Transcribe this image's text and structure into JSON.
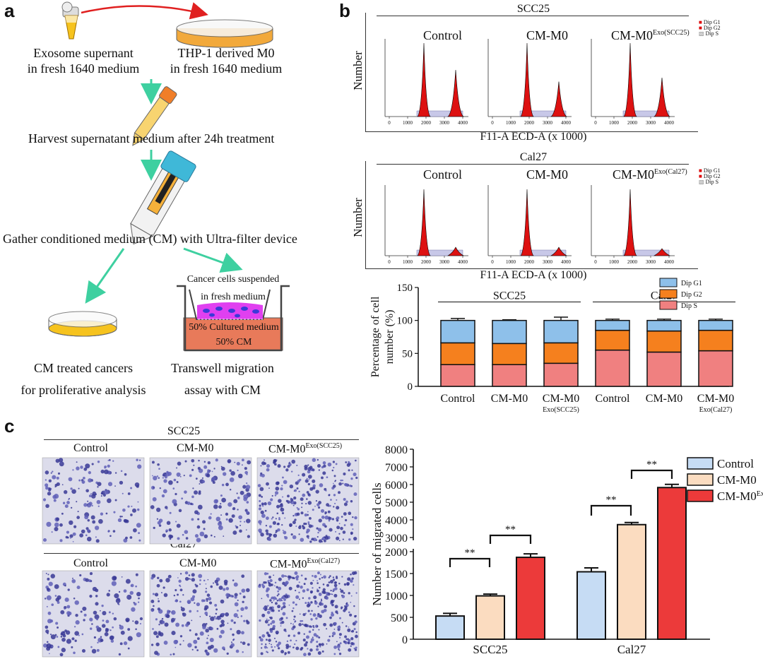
{
  "panel_a": {
    "letter": "a",
    "exosome_label": [
      "Exosome supernant",
      "in fresh 1640 medium"
    ],
    "thp1_label": [
      "THP-1 derived M0",
      "in fresh 1640 medium"
    ],
    "harvest_label": "Harvest supernatant medium after 24h treatment",
    "gather_label": "Gather conditioned medium (CM) with Ultra-filter device",
    "cm_treated_label": [
      "CM treated cancers",
      "for proliferative analysis"
    ],
    "transwell_label": [
      "Transwell migration",
      "assay with CM"
    ],
    "insert_top_label": "Cancer cells suspended",
    "insert_mid_label": "in fresh medium",
    "cultured_label": "50% Cultured medium",
    "cm_label": "50% CM",
    "colors": {
      "red_arrow": "#e02020",
      "green_arrow": "#3ed0a0",
      "yellow": "#f6c31e",
      "magenta": "#e040f0",
      "salmon": "#e87a5a"
    }
  },
  "panel_b": {
    "letter": "b",
    "histograms": [
      {
        "cell_line": "SCC25",
        "conditions": [
          "Control",
          "CM-M0",
          "CM-M0"
        ],
        "exo_sup": "Exo(SCC25)",
        "legend": [
          "Dip G1",
          "Dip G2",
          "Dip S"
        ],
        "ylabel": "Number",
        "xlabel": "F11-A ECD-A (x 1000)",
        "xticks": [
          "0",
          "1000",
          "2000",
          "3000",
          "4000"
        ]
      },
      {
        "cell_line": "Cal27",
        "conditions": [
          "Control",
          "CM-M0",
          "CM-M0"
        ],
        "exo_sup": "Exo(Cal27)",
        "legend": [
          "Dip G1",
          "Dip G2",
          "Dip S"
        ],
        "ylabel": "Number",
        "xlabel": "F11-A ECD-A (x 1000)",
        "xticks": [
          "0",
          "1000",
          "2000",
          "3000",
          "4000"
        ]
      }
    ],
    "bar_colors": {
      "g1": "#8ec0ea",
      "g2": "#f5801e",
      "s": "#f08080"
    }
  },
  "panel_c": {
    "letter": "c",
    "micro_groups": [
      {
        "cell_line": "SCC25",
        "conditions": [
          "Control",
          "CM-M0",
          "CM-M0"
        ],
        "exo_sup": "Exo(SCC25)"
      },
      {
        "cell_line": "Cal27",
        "conditions": [
          "Control",
          "CM-M0",
          "CM-M0"
        ],
        "exo_sup": "Exo(Cal27)"
      }
    ],
    "significance": "**"
  },
  "chart_data": [
    {
      "type": "bar",
      "stacked": true,
      "ylabel": "Percentage of cell number (%)",
      "ylim": [
        0,
        150
      ],
      "yticks": [
        0,
        50,
        100,
        150
      ],
      "groups": [
        "SCC25",
        "Cal27"
      ],
      "categories": [
        "Control",
        "CM-M0",
        "CM-M0 Exo(SCC25)",
        "Control",
        "CM-M0",
        "CM-M0 Exo(Cal27)"
      ],
      "tick_labels": [
        [
          "Control"
        ],
        [
          "CM-M0"
        ],
        [
          "CM-M0",
          "Exo(SCC25)"
        ],
        [
          "Control"
        ],
        [
          "CM-M0"
        ],
        [
          "CM-M0",
          "Exo(Cal27)"
        ]
      ],
      "series": [
        {
          "name": "Dip S",
          "color": "#f08080",
          "values": [
            33,
            33,
            35,
            55,
            52,
            54
          ],
          "err": [
            4,
            2,
            4,
            7,
            6,
            6
          ]
        },
        {
          "name": "Dip G2",
          "color": "#f5801e",
          "values": [
            33,
            32,
            31,
            30,
            32,
            31
          ],
          "err": [
            1,
            1,
            1,
            4,
            4,
            3
          ]
        },
        {
          "name": "Dip G1",
          "color": "#8ec0ea",
          "values": [
            34,
            35,
            34,
            15,
            16,
            15
          ],
          "err": [
            3,
            1,
            5,
            2,
            2,
            2
          ]
        }
      ],
      "legend": [
        "Dip G1",
        "Dip G2",
        "Dip S"
      ],
      "legend_position": "top-right"
    },
    {
      "type": "bar",
      "ylabel": "Number of migrated cells",
      "categories": [
        "SCC25",
        "Cal27"
      ],
      "axis_break": [
        2000,
        3000
      ],
      "yticks": [
        0,
        500,
        1000,
        1500,
        2000,
        3000,
        4000,
        5000,
        6000,
        7000,
        8000
      ],
      "series": [
        {
          "name": "Control",
          "color": "#c6dcf4",
          "values": [
            530,
            1540
          ],
          "err": [
            60,
            90
          ]
        },
        {
          "name": "CM-M0",
          "color": "#fbdcc0",
          "values": [
            990,
            3730
          ],
          "err": [
            40,
            120
          ]
        },
        {
          "name": "CM-M0",
          "name_sup": "Exo",
          "color": "#ec3a3a",
          "values": [
            1870,
            5830
          ],
          "err": [
            80,
            180
          ]
        }
      ],
      "legend_position": "top-right",
      "significance": "**"
    }
  ]
}
